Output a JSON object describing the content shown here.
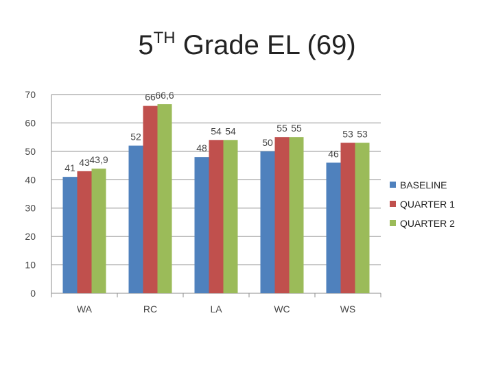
{
  "title": {
    "main": "5",
    "sup": "TH",
    "rest": " Grade EL (69)"
  },
  "chart_data": {
    "type": "bar",
    "categories": [
      "WA",
      "RC",
      "LA",
      "WC",
      "WS"
    ],
    "series": [
      {
        "name": "BASELINE",
        "color": "#4f81bd",
        "values": [
          41,
          52,
          48,
          50,
          46
        ],
        "labels": [
          "41",
          "52",
          "48",
          "50",
          "46"
        ]
      },
      {
        "name": "QUARTER 1",
        "color": "#c0504d",
        "values": [
          43,
          66,
          54,
          55,
          53
        ],
        "labels": [
          "43",
          "66",
          "54",
          "55",
          "53"
        ]
      },
      {
        "name": "QUARTER 2",
        "color": "#9bbb59",
        "values": [
          43.9,
          66.6,
          54,
          55,
          53
        ],
        "labels": [
          "43,9",
          "66,6",
          "54",
          "55",
          "53"
        ]
      }
    ],
    "ylim": [
      0,
      70
    ],
    "yticks": [
      0,
      10,
      20,
      30,
      40,
      50,
      60,
      70
    ],
    "grid": true,
    "legend": "right"
  }
}
